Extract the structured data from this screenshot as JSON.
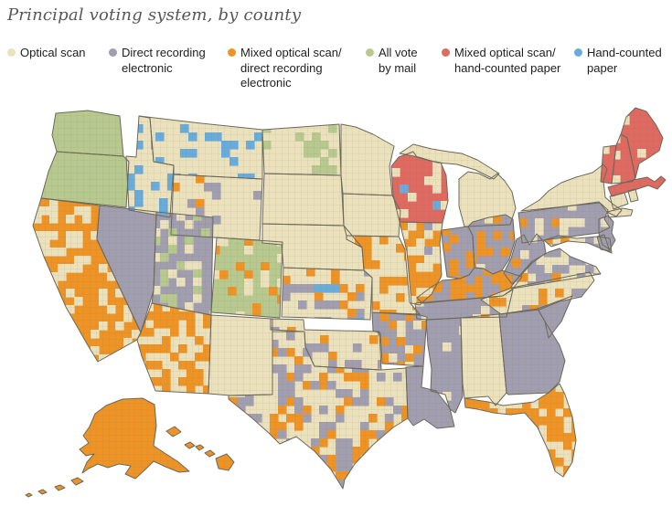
{
  "title": "Principal voting system, by county",
  "legend": {
    "items": [
      {
        "key": "optical",
        "label": "Optical scan",
        "color": "#EBE2BD"
      },
      {
        "key": "dre",
        "label": "Direct recording\nelectronic",
        "color": "#A19EAF"
      },
      {
        "key": "mixed_dre",
        "label": "Mixed optical scan/\ndirect recording\nelectronic",
        "color": "#EE9426"
      },
      {
        "key": "mail",
        "label": "All vote\nby mail",
        "color": "#B7C98F"
      },
      {
        "key": "mixed_hand",
        "label": "Mixed optical scan/\nhand-counted paper",
        "color": "#DF6A62"
      },
      {
        "key": "hand",
        "label": "Hand-counted\npaper",
        "color": "#69ACDB"
      }
    ]
  },
  "map": {
    "state_border_color": "#6C685A",
    "county_line_color": "rgba(118,108,78,0.30)",
    "regions": [
      {
        "id": "WA",
        "name": "Washington",
        "system": "mail"
      },
      {
        "id": "OR",
        "name": "Oregon",
        "system": "mail"
      },
      {
        "id": "CA",
        "name": "California",
        "system": "mixed_dre",
        "mix": {
          "optical": 0.35
        }
      },
      {
        "id": "NV",
        "name": "Nevada",
        "system": "dre"
      },
      {
        "id": "ID",
        "name": "Idaho",
        "system": "optical",
        "mix": {
          "hand": 0.25
        }
      },
      {
        "id": "MT",
        "name": "Montana",
        "system": "optical",
        "mix": {
          "hand": 0.22
        }
      },
      {
        "id": "WY",
        "name": "Wyoming",
        "system": "optical",
        "mix": {
          "mixed_dre": 0.07,
          "dre": 0.03
        }
      },
      {
        "id": "UT",
        "name": "Utah",
        "system": "dre",
        "mix": {
          "mail": 0.22,
          "optical": 0.18
        }
      },
      {
        "id": "CO",
        "name": "Colorado",
        "system": "mail",
        "mix": {
          "optical": 0.12,
          "mixed_dre": 0.05
        }
      },
      {
        "id": "AZ",
        "name": "Arizona",
        "system": "optical",
        "mix": {
          "mixed_dre": 0.45
        }
      },
      {
        "id": "NM",
        "name": "New Mexico",
        "system": "optical"
      },
      {
        "id": "ND",
        "name": "North Dakota",
        "system": "optical",
        "mix": {
          "mail": 0.22
        }
      },
      {
        "id": "SD",
        "name": "South Dakota",
        "system": "optical"
      },
      {
        "id": "NE",
        "name": "Nebraska",
        "system": "optical"
      },
      {
        "id": "KS",
        "name": "Kansas",
        "system": "optical",
        "mix": {
          "mixed_dre": 0.22,
          "dre": 0.15,
          "hand": 0.06
        }
      },
      {
        "id": "OK",
        "name": "Oklahoma",
        "system": "optical",
        "mix": {
          "dre": 0.18,
          "mixed_dre": 0.08
        }
      },
      {
        "id": "TX",
        "name": "Texas",
        "system": "optical",
        "mix": {
          "dre": 0.28,
          "mixed_dre": 0.22
        }
      },
      {
        "id": "MN",
        "name": "Minnesota",
        "system": "optical"
      },
      {
        "id": "IA",
        "name": "Iowa",
        "system": "optical"
      },
      {
        "id": "MO",
        "name": "Missouri",
        "system": "optical",
        "mix": {
          "mixed_dre": 0.28
        }
      },
      {
        "id": "AR",
        "name": "Arkansas",
        "system": "dre",
        "mix": {
          "mixed_dre": 0.22,
          "optical": 0.18
        }
      },
      {
        "id": "LA",
        "name": "Louisiana",
        "system": "dre"
      },
      {
        "id": "WI",
        "name": "Wisconsin",
        "system": "mixed_hand",
        "mix": {
          "optical": 0.16,
          "hand": 0.05
        }
      },
      {
        "id": "IL",
        "name": "Illinois",
        "system": "mixed_dre",
        "mix": {
          "optical": 0.22,
          "dre": 0.1,
          "hand": 0.04
        }
      },
      {
        "id": "MI",
        "name": "Michigan",
        "system": "optical"
      },
      {
        "id": "IN",
        "name": "Indiana",
        "system": "dre",
        "mix": {
          "mixed_dre": 0.25,
          "optical": 0.15
        }
      },
      {
        "id": "OH",
        "name": "Ohio",
        "system": "dre",
        "mix": {
          "mixed_dre": 0.18,
          "optical": 0.15
        }
      },
      {
        "id": "KY",
        "name": "Kentucky",
        "system": "mixed_dre",
        "mix": {
          "dre": 0.3,
          "optical": 0.06
        }
      },
      {
        "id": "TN",
        "name": "Tennessee",
        "system": "dre",
        "mix": {
          "mixed_dre": 0.15,
          "optical": 0.1
        }
      },
      {
        "id": "MS",
        "name": "Mississippi",
        "system": "dre",
        "mix": {
          "optical": 0.06
        }
      },
      {
        "id": "AL",
        "name": "Alabama",
        "system": "optical"
      },
      {
        "id": "GA",
        "name": "Georgia",
        "system": "dre"
      },
      {
        "id": "FL",
        "name": "Florida",
        "system": "optical",
        "mix": {
          "mixed_dre": 0.4
        }
      },
      {
        "id": "SC",
        "name": "South Carolina",
        "system": "dre"
      },
      {
        "id": "NC",
        "name": "North Carolina",
        "system": "optical",
        "mix": {
          "mixed_dre": 0.15,
          "dre": 0.12
        }
      },
      {
        "id": "VA",
        "name": "Virginia",
        "system": "optical",
        "mix": {
          "dre": 0.35,
          "mixed_dre": 0.08
        }
      },
      {
        "id": "WV",
        "name": "West Virginia",
        "system": "dre",
        "mix": {
          "optical": 0.2,
          "mixed_dre": 0.1
        }
      },
      {
        "id": "MD",
        "name": "Maryland",
        "system": "optical",
        "mix": {
          "dre": 0.2,
          "mixed_dre": 0.08
        }
      },
      {
        "id": "DE",
        "name": "Delaware",
        "system": "dre"
      },
      {
        "id": "NJ",
        "name": "New Jersey",
        "system": "dre"
      },
      {
        "id": "PA",
        "name": "Pennsylvania",
        "system": "dre",
        "mix": {
          "optical": 0.15,
          "mixed_dre": 0.06
        }
      },
      {
        "id": "NY",
        "name": "New York",
        "system": "optical"
      },
      {
        "id": "CT",
        "name": "Connecticut",
        "system": "optical"
      },
      {
        "id": "RI",
        "name": "Rhode Island",
        "system": "optical"
      },
      {
        "id": "MA",
        "name": "Massachusetts",
        "system": "mixed_hand"
      },
      {
        "id": "VT",
        "name": "Vermont",
        "system": "mixed_hand",
        "mix": {
          "optical": 0.06
        }
      },
      {
        "id": "NH",
        "name": "New Hampshire",
        "system": "mixed_hand",
        "mix": {
          "optical": 0.1
        }
      },
      {
        "id": "ME",
        "name": "Maine",
        "system": "mixed_hand",
        "mix": {
          "optical": 0.05
        }
      },
      {
        "id": "AK",
        "name": "Alaska",
        "system": "mixed_dre"
      },
      {
        "id": "HI",
        "name": "Hawaii",
        "system": "mixed_dre"
      }
    ]
  }
}
